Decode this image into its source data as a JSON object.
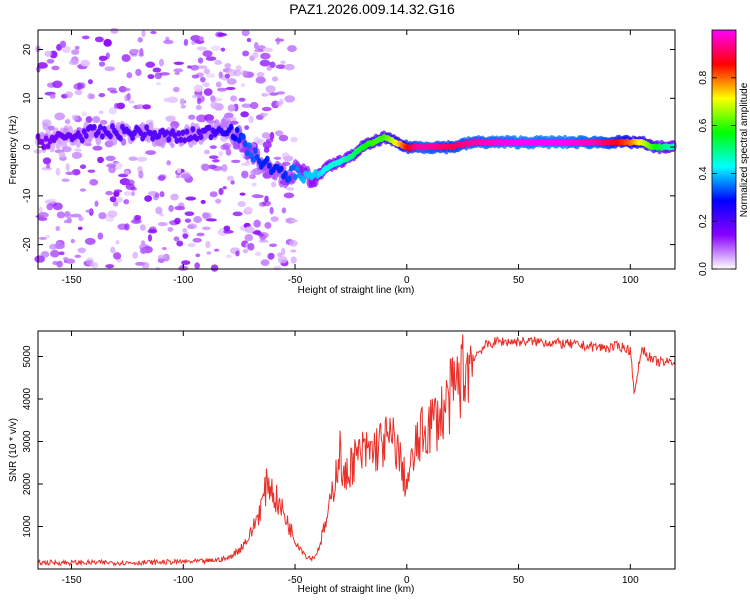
{
  "title": "PAZ1.2026.009.14.32.G16",
  "colors": {
    "frame": "#000000",
    "snr_line": "#e8302a",
    "background": "#ffffff"
  },
  "chart_data": [
    {
      "type": "heatmap",
      "name": "spectrogram",
      "xlabel": "Height of straight line (km)",
      "ylabel": "Frequency (Hz)",
      "xlim": [
        -165,
        120
      ],
      "ylim": [
        -25,
        24
      ],
      "xticks": [
        -150,
        -100,
        -50,
        0,
        50,
        100
      ],
      "yticks": [
        -20,
        -10,
        0,
        10,
        20
      ],
      "colorbar": {
        "label": "Normalized spectral amplitude",
        "range": [
          0,
          1
        ],
        "ticks": [
          "0.0",
          "0.2",
          "0.4",
          "0.6",
          "0.8"
        ],
        "colormap": [
          "#ffffff",
          "#8800ff",
          "#0000ff",
          "#00ffff",
          "#00ff00",
          "#ffff00",
          "#ff0000",
          "#ff00ff"
        ]
      },
      "ridge": {
        "x": [
          -165,
          -140,
          -120,
          -100,
          -90,
          -80,
          -75,
          -70,
          -65,
          -60,
          -55,
          -50,
          -45,
          -40,
          -35,
          -30,
          -25,
          -20,
          -15,
          -10,
          -5,
          0,
          5,
          10,
          20,
          30,
          50,
          70,
          85,
          95,
          100,
          105,
          110,
          115,
          120
        ],
        "freq": [
          1,
          3,
          3,
          2,
          3,
          4,
          2,
          -1,
          -3,
          -4,
          -6,
          -5,
          -6,
          -6,
          -4,
          -3,
          -2,
          0,
          1,
          2,
          1,
          0,
          0,
          0,
          0,
          1,
          1,
          1,
          1,
          1,
          1,
          1,
          0,
          0,
          0
        ],
        "amplitude": [
          0.15,
          0.2,
          0.2,
          0.2,
          0.2,
          0.25,
          0.3,
          0.35,
          0.3,
          0.3,
          0.3,
          0.35,
          0.4,
          0.4,
          0.45,
          0.45,
          0.5,
          0.55,
          0.6,
          0.6,
          0.7,
          0.85,
          0.95,
          0.95,
          0.9,
          0.95,
          1.0,
          1.0,
          0.95,
          0.85,
          0.8,
          0.7,
          0.6,
          0.5,
          0.45
        ]
      }
    },
    {
      "type": "line",
      "name": "snr",
      "xlabel": "Height of straight line (km)",
      "ylabel": "SNR (10 * v/v)",
      "xlim": [
        -165,
        120
      ],
      "ylim": [
        0,
        5600
      ],
      "xticks": [
        -150,
        -100,
        -50,
        0,
        50,
        100
      ],
      "yticks": [
        1000,
        2000,
        3000,
        4000,
        5000
      ],
      "x": [
        -165,
        -140,
        -120,
        -100,
        -90,
        -80,
        -75,
        -70,
        -65,
        -62,
        -60,
        -55,
        -50,
        -45,
        -42,
        -40,
        -35,
        -32,
        -30,
        -28,
        -25,
        -20,
        -15,
        -10,
        -5,
        -2,
        0,
        5,
        10,
        15,
        20,
        25,
        30,
        35,
        40,
        45,
        50,
        60,
        70,
        80,
        90,
        95,
        100,
        102,
        105,
        110,
        115,
        120
      ],
      "y": [
        150,
        150,
        150,
        170,
        180,
        250,
        450,
        800,
        1500,
        2100,
        1800,
        1300,
        700,
        300,
        250,
        400,
        1300,
        2200,
        2800,
        2000,
        2500,
        2700,
        2800,
        3000,
        3000,
        2300,
        2000,
        3000,
        3400,
        3600,
        4100,
        4600,
        5000,
        5250,
        5350,
        5350,
        5350,
        5350,
        5300,
        5250,
        5200,
        5250,
        5150,
        4100,
        5200,
        4900,
        4850,
        4900
      ]
    }
  ]
}
